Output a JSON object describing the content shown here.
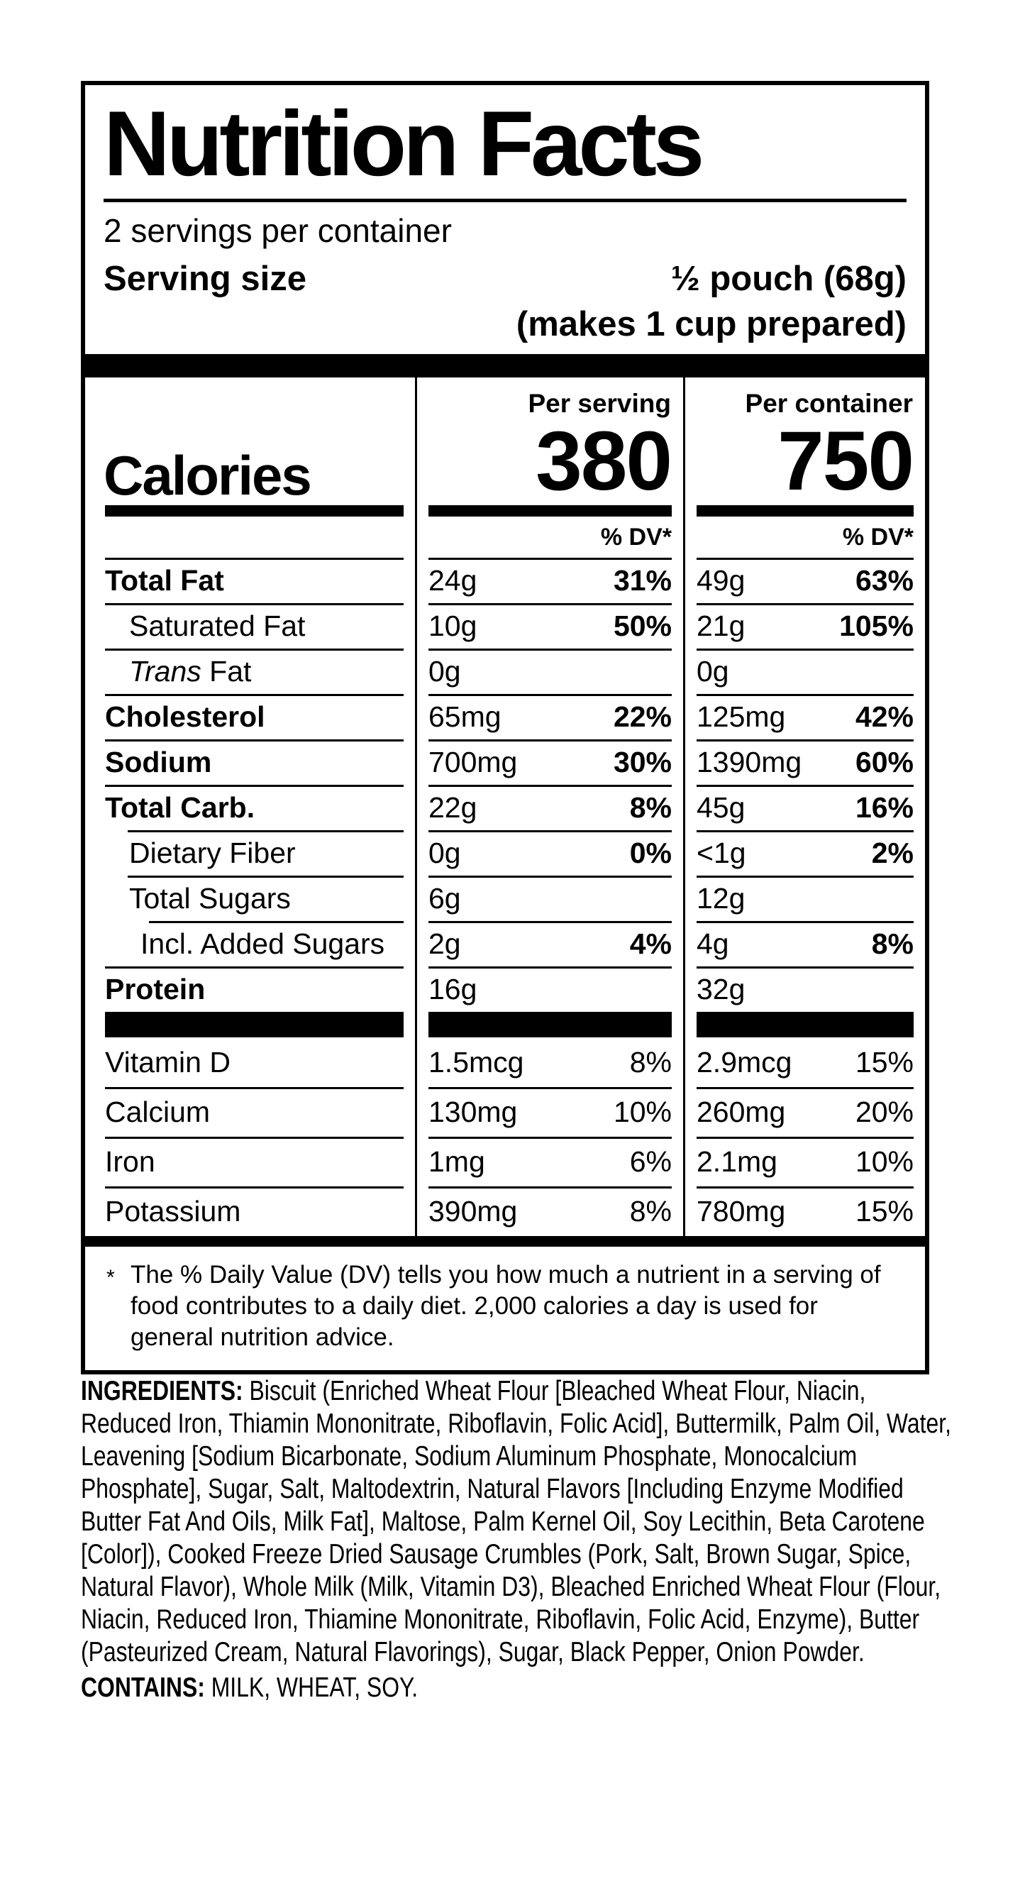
{
  "label": {
    "title": "Nutrition Facts",
    "servings_per_container": "2 servings per container",
    "serving_size_label": "Serving size",
    "serving_size_value": "½ pouch (68g)",
    "serving_size_note": "(makes 1 cup prepared)",
    "calories": {
      "label": "Calories",
      "per_serving_header": "Per serving",
      "per_container_header": "Per container",
      "per_serving_value": "380",
      "per_container_value": "750"
    },
    "dv_header": "% DV*",
    "rows": [
      {
        "label": "Total Fat",
        "amount_serving": "24g",
        "dv_serving": "31%",
        "amount_container": "49g",
        "dv_container": "63%"
      },
      {
        "label": "Saturated Fat",
        "amount_serving": "10g",
        "dv_serving": "50%",
        "amount_container": "21g",
        "dv_container": "105%"
      },
      {
        "label_italic": "Trans",
        "label_rest": " Fat",
        "amount_serving": "0g",
        "dv_serving": "",
        "amount_container": "0g",
        "dv_container": ""
      },
      {
        "label": "Cholesterol",
        "amount_serving": "65mg",
        "dv_serving": "22%",
        "amount_container": "125mg",
        "dv_container": "42%"
      },
      {
        "label": "Sodium",
        "amount_serving": "700mg",
        "dv_serving": "30%",
        "amount_container": "1390mg",
        "dv_container": "60%"
      },
      {
        "label": "Total Carb.",
        "amount_serving": "22g",
        "dv_serving": "8%",
        "amount_container": "45g",
        "dv_container": "16%"
      },
      {
        "label": "Dietary Fiber",
        "amount_serving": "0g",
        "dv_serving": "0%",
        "amount_container": "<1g",
        "dv_container": "2%"
      },
      {
        "label": "Total Sugars",
        "amount_serving": "6g",
        "dv_serving": "",
        "amount_container": "12g",
        "dv_container": ""
      },
      {
        "label": "Incl. Added Sugars",
        "amount_serving": "2g",
        "dv_serving": "4%",
        "amount_container": "4g",
        "dv_container": "8%"
      },
      {
        "label": "Protein",
        "amount_serving": "16g",
        "dv_serving": "",
        "amount_container": "32g",
        "dv_container": ""
      }
    ],
    "vitamins": [
      {
        "label": "Vitamin D",
        "amount_serving": "1.5mcg",
        "dv_serving": "8%",
        "amount_container": "2.9mcg",
        "dv_container": "15%"
      },
      {
        "label": "Calcium",
        "amount_serving": "130mg",
        "dv_serving": "10%",
        "amount_container": "260mg",
        "dv_container": "20%"
      },
      {
        "label": "Iron",
        "amount_serving": "1mg",
        "dv_serving": "6%",
        "amount_container": "2.1mg",
        "dv_container": "10%"
      },
      {
        "label": "Potassium",
        "amount_serving": "390mg",
        "dv_serving": "8%",
        "amount_container": "780mg",
        "dv_container": "15%"
      }
    ],
    "footnote_marker": "*",
    "footnote": "The % Daily Value (DV) tells you how much a nutrient in a serving of food contributes to a daily diet. 2,000 calories a day is used for general nutrition advice."
  },
  "ingredients": {
    "label": "INGREDIENTS:",
    "text": "Biscuit (Enriched Wheat Flour [Bleached Wheat Flour, Niacin, Reduced Iron, Thiamin Mononitrate, Riboflavin, Folic Acid], Buttermilk, Palm Oil, Water, Leavening [Sodium Bicarbonate, Sodium Aluminum Phosphate, Monocalcium Phosphate], Sugar, Salt, Maltodextrin, Natural Flavors [Including Enzyme Modified Butter Fat And Oils, Milk Fat], Maltose, Palm Kernel Oil, Soy Lecithin, Beta Carotene [Color]), Cooked Freeze Dried Sausage Crumbles (Pork, Salt, Brown Sugar, Spice, Natural Flavor), Whole Milk (Milk, Vitamin D3), Bleached Enriched Wheat Flour (Flour, Niacin, Reduced Iron, Thiamine Mononitrate, Riboflavin, Folic Acid, Enzyme), Butter (Pasteurized Cream, Natural Flavorings), Sugar, Black Pepper, Onion Powder."
  },
  "contains": {
    "label": "CONTAINS:",
    "text": "MILK, WHEAT, SOY."
  }
}
